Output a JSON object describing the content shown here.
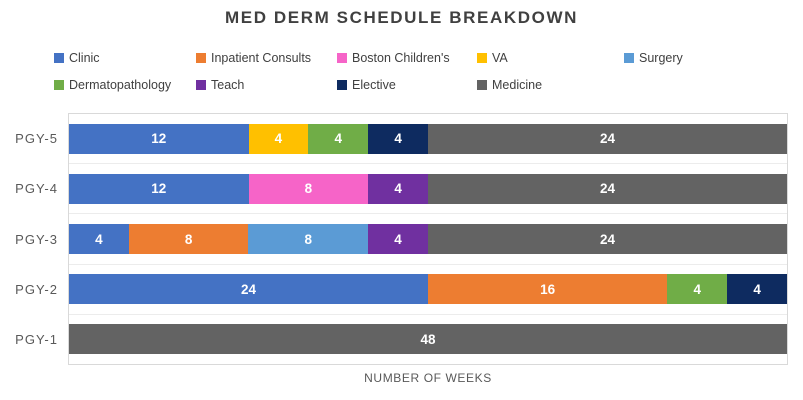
{
  "chart_data": {
    "type": "bar",
    "stacked": true,
    "orientation": "horizontal",
    "title": "MED DERM SCHEDULE BREAKDOWN",
    "xlabel": "NUMBER OF WEEKS",
    "xmax": 48,
    "categories": [
      "PGY-5",
      "PGY-4",
      "PGY-3",
      "PGY-2",
      "PGY-1"
    ],
    "series": [
      {
        "name": "Clinic",
        "color": "#4472C4",
        "values": [
          12,
          12,
          4,
          24,
          0
        ]
      },
      {
        "name": "Inpatient Consults",
        "color": "#ED7D31",
        "values": [
          0,
          0,
          8,
          16,
          0
        ]
      },
      {
        "name": "Boston Children's",
        "color": "#F664C8",
        "values": [
          0,
          8,
          0,
          0,
          0
        ]
      },
      {
        "name": "VA",
        "color": "#FFC000",
        "values": [
          4,
          0,
          0,
          0,
          0
        ]
      },
      {
        "name": "Surgery",
        "color": "#5B9BD5",
        "values": [
          0,
          0,
          8,
          0,
          0
        ]
      },
      {
        "name": "Dermatopathology",
        "color": "#70AD47",
        "values": [
          4,
          0,
          0,
          4,
          0
        ]
      },
      {
        "name": "Teach",
        "color": "#7030A0",
        "values": [
          0,
          4,
          4,
          0,
          0
        ]
      },
      {
        "name": "Elective",
        "color": "#0E2B60",
        "values": [
          4,
          0,
          0,
          4,
          0
        ]
      },
      {
        "name": "Medicine",
        "color": "#636363",
        "values": [
          24,
          24,
          24,
          0,
          48
        ]
      }
    ],
    "legend": {
      "position": "top",
      "row_item_counts": [
        5,
        4
      ]
    },
    "gridlines": "category-separators",
    "data_label_color": "#FFFFFF",
    "colors": {
      "title_text": "#404040",
      "axis_text": "#595959",
      "plot_border": "#D9D9D9",
      "gridline": "#ECECEC"
    }
  }
}
